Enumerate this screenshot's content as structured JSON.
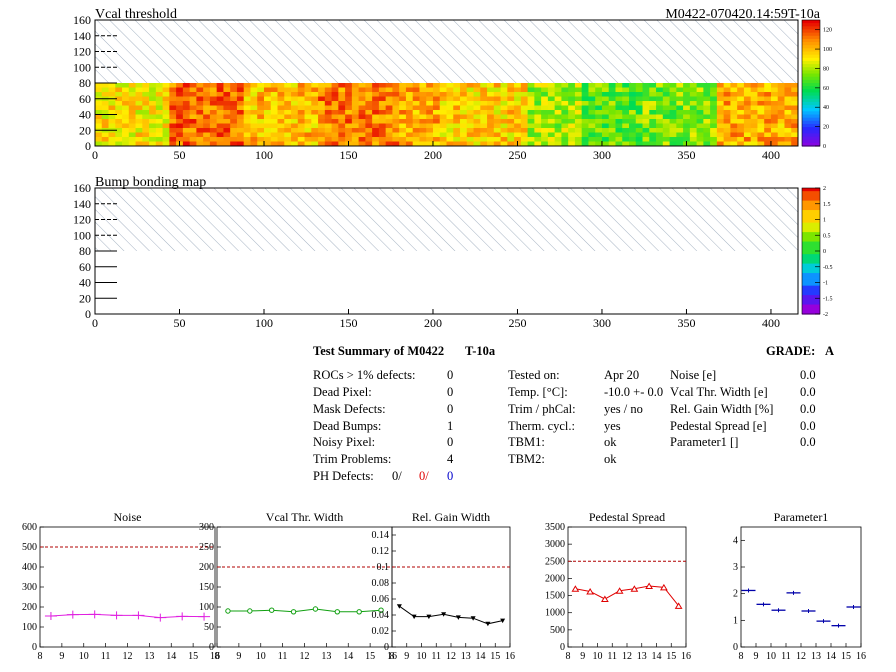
{
  "colors": {
    "hatch": "#8fa0b4",
    "ref_line": "#b00000",
    "red_text": "#e00000",
    "blue_text": "#0000cc"
  },
  "maps": [
    {
      "title": "Vcal threshold",
      "run_label": "M0422-070420.14:59T-10a",
      "x_ticks": [
        0,
        50,
        100,
        150,
        200,
        250,
        300,
        350,
        400
      ],
      "y_ticks": [
        0,
        20,
        40,
        60,
        80,
        100,
        120,
        140,
        160
      ],
      "xlim": [
        0,
        416
      ],
      "ylim": [
        0,
        160
      ],
      "data_region": "rows 0-80 filled, rows 80-160 hatched",
      "palette_labels": [
        "120",
        "100",
        "80",
        "60",
        "40",
        "20",
        "0"
      ],
      "palette_range": [
        0,
        130
      ]
    },
    {
      "title": "Bump bonding map",
      "x_ticks": [
        0,
        50,
        100,
        150,
        200,
        250,
        300,
        350,
        400
      ],
      "y_ticks": [
        0,
        20,
        40,
        60,
        80,
        100,
        120,
        140,
        160
      ],
      "xlim": [
        0,
        416
      ],
      "ylim": [
        0,
        160
      ],
      "data_region": "rows 0-80 empty, rows 80-160 hatched",
      "palette_labels": [
        "2",
        "1.5",
        "1",
        "0.5",
        "0",
        "-0.5",
        "-1",
        "-1.5",
        "-2"
      ],
      "palette_range": [
        -2,
        2
      ]
    }
  ],
  "summary": {
    "title": "Test Summary of M0422",
    "run": "T-10a",
    "grade_label": "GRADE:",
    "grade": "A",
    "defects": [
      {
        "label": "ROCs > 1% defects:",
        "value": "0"
      },
      {
        "label": "Dead Pixel:",
        "value": "0"
      },
      {
        "label": "Mask Defects:",
        "value": "0"
      },
      {
        "label": "Dead Bumps:",
        "value": "1"
      },
      {
        "label": "Noisy Pixel:",
        "value": "0"
      },
      {
        "label": "Trim Problems:",
        "value": "4"
      }
    ],
    "ph_label": "PH Defects:",
    "ph_values": [
      "0/",
      "0/",
      "0"
    ],
    "conditions": [
      {
        "label": "Tested on:",
        "value": "Apr 20"
      },
      {
        "label": "Temp. [°C]:",
        "value": "-10.0 +- 0.0"
      },
      {
        "label": "Trim / phCal:",
        "value": "yes / no"
      },
      {
        "label": "Therm. cycl.:",
        "value": "yes"
      },
      {
        "label": "TBM1:",
        "value": "ok"
      },
      {
        "label": "TBM2:",
        "value": "ok"
      }
    ],
    "parameters": [
      {
        "label": "Noise [e]",
        "value": "0.0"
      },
      {
        "label": "Vcal Thr. Width [e]",
        "value": "0.0"
      },
      {
        "label": "Rel. Gain Width [%]",
        "value": "0.0"
      },
      {
        "label": "Pedestal Spread [e]",
        "value": "0.0"
      },
      {
        "label": "Parameter1 []",
        "value": "0.0"
      }
    ]
  },
  "chart_data": [
    {
      "type": "line",
      "title": "Noise",
      "xlim": [
        8,
        16
      ],
      "ylim": [
        0,
        600
      ],
      "x_ticks": [
        "8",
        "9",
        "10",
        "11",
        "12",
        "13",
        "14",
        "15",
        "16"
      ],
      "y_ticks": [
        "0",
        "100",
        "200",
        "300",
        "400",
        "500",
        "600"
      ],
      "ref_line": 500,
      "color": "#e020e0",
      "marker": "plus",
      "x": [
        8.5,
        9.5,
        10.5,
        11.5,
        12.5,
        13.5,
        14.5,
        15.5
      ],
      "values": [
        155,
        162,
        163,
        158,
        158,
        147,
        153,
        152
      ]
    },
    {
      "type": "line",
      "title": "Vcal Thr. Width",
      "xlim": [
        8,
        16
      ],
      "ylim": [
        0,
        300
      ],
      "x_ticks": [
        "8",
        "9",
        "10",
        "11",
        "12",
        "13",
        "14",
        "15",
        "16"
      ],
      "y_ticks": [
        "0",
        "50",
        "100",
        "150",
        "200",
        "250",
        "300"
      ],
      "ref_line": 200,
      "color": "#10a010",
      "marker": "circle",
      "x": [
        8.5,
        9.5,
        10.5,
        11.5,
        12.5,
        13.5,
        14.5,
        15.5
      ],
      "values": [
        90,
        90,
        92,
        88,
        95,
        88,
        88,
        92
      ]
    },
    {
      "type": "line",
      "title": "Rel. Gain Width",
      "xlim": [
        8,
        16
      ],
      "ylim": [
        0,
        0.15
      ],
      "x_ticks": [
        "8",
        "9",
        "10",
        "11",
        "12",
        "13",
        "14",
        "15",
        "16"
      ],
      "y_ticks": [
        "0",
        "0.02",
        "0.04",
        "0.06",
        "0.08",
        "0.1",
        "0.12",
        "0.14"
      ],
      "ref_line": 0.1,
      "color": "#000000",
      "marker": "triangle-down",
      "x": [
        8.5,
        9.5,
        10.5,
        11.5,
        12.5,
        13.5,
        14.5,
        15.5
      ],
      "values": [
        0.051,
        0.038,
        0.038,
        0.041,
        0.037,
        0.036,
        0.029,
        0.033
      ]
    },
    {
      "type": "line",
      "title": "Pedestal Spread",
      "xlim": [
        8,
        16
      ],
      "ylim": [
        0,
        3500
      ],
      "x_ticks": [
        "8",
        "9",
        "10",
        "11",
        "12",
        "13",
        "14",
        "15",
        "16"
      ],
      "y_ticks": [
        "0",
        "500",
        "1000",
        "1500",
        "2000",
        "2500",
        "3000",
        "3500"
      ],
      "ref_line": 2500,
      "color": "#e00000",
      "marker": "triangle-up",
      "x": [
        8.5,
        9.5,
        10.5,
        11.5,
        12.5,
        13.5,
        14.5,
        15.5
      ],
      "values": [
        1700,
        1620,
        1400,
        1640,
        1700,
        1780,
        1740,
        1200
      ]
    },
    {
      "type": "scatter",
      "title": "Parameter1",
      "xlim": [
        8,
        16
      ],
      "ylim": [
        0,
        4.5
      ],
      "x_ticks": [
        "8",
        "9",
        "10",
        "11",
        "12",
        "13",
        "14",
        "15",
        "16"
      ],
      "y_ticks": [
        "0",
        "1",
        "2",
        "3",
        "4"
      ],
      "color": "#0000aa",
      "marker": "hbar",
      "x": [
        8.5,
        9.5,
        10.5,
        11.5,
        12.5,
        13.5,
        14.5,
        15.5
      ],
      "values": [
        2.12,
        1.6,
        1.38,
        2.03,
        1.35,
        0.97,
        0.8,
        1.5
      ]
    }
  ]
}
